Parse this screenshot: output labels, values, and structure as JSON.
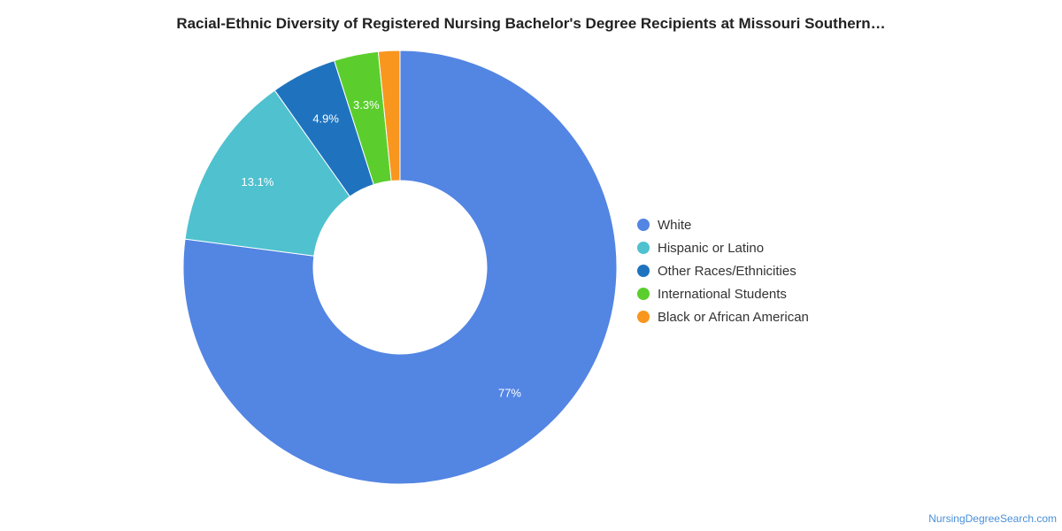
{
  "chart_data": {
    "type": "pie",
    "title": "Racial-Ethnic Diversity of Registered Nursing Bachelor's Degree Recipients at Missouri Southern…",
    "donut": true,
    "slices": [
      {
        "label": "White",
        "value": 77,
        "display": "77%",
        "color": "#5385e3"
      },
      {
        "label": "Hispanic or Latino",
        "value": 13.1,
        "display": "13.1%",
        "color": "#4fc1cf"
      },
      {
        "label": "Other Races/Ethnicities",
        "value": 4.9,
        "display": "4.9%",
        "color": "#1f73be"
      },
      {
        "label": "International Students",
        "value": 3.3,
        "display": "3.3%",
        "color": "#5bce2d"
      },
      {
        "label": "Black or African American",
        "value": 1.6,
        "display": "",
        "color": "#f8961e"
      }
    ],
    "legend_position": "right"
  },
  "source": "NursingDegreeSearch.com"
}
